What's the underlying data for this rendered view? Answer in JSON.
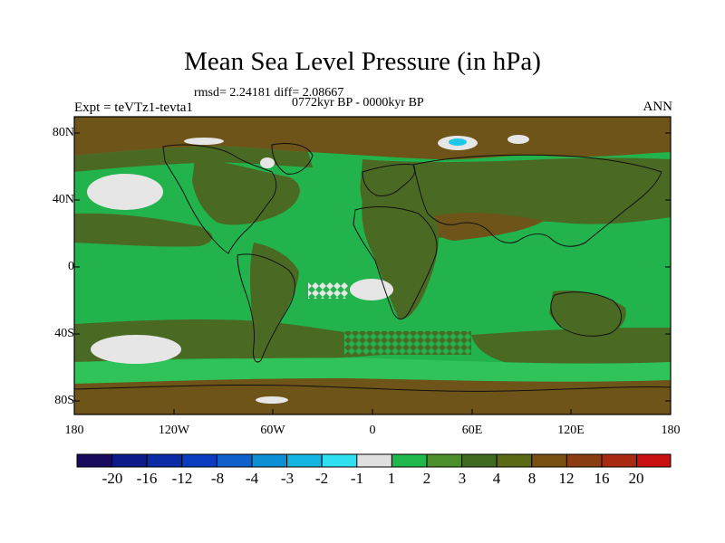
{
  "title": "Mean Sea Level Pressure (in hPa)",
  "stats_line": "rmsd= 2.24181 diff= 2.08667",
  "period_line": "0772kyr BP - 0000kyr BP",
  "experiment_label": "Expt = teVTz1-tevta1",
  "season_label": "ANN",
  "axes": {
    "y_ticks": [
      "80N",
      "40N",
      "0",
      "40S",
      "80S"
    ],
    "x_ticks": [
      "180",
      "120W",
      "60W",
      "0",
      "60E",
      "120E",
      "180"
    ]
  },
  "colorbar": {
    "labels": [
      "-20",
      "-16",
      "-12",
      "-8",
      "-4",
      "-3",
      "-2",
      "-1",
      "1",
      "2",
      "3",
      "4",
      "8",
      "12",
      "16",
      "20"
    ],
    "colors": [
      "#1a0a5e",
      "#0d1a8a",
      "#0a2aa6",
      "#0a3dbf",
      "#1060cc",
      "#0a8fd4",
      "#14b4e0",
      "#30e0f0",
      "#e0e0e0",
      "#1fb84a",
      "#4a8f2a",
      "#3f6a1f",
      "#5a6a14",
      "#7a5012",
      "#8a3d10",
      "#a82a10",
      "#c81010"
    ]
  },
  "map_colors": {
    "brown": "#6e5418",
    "olive": "#4a6a24",
    "green": "#22b34c",
    "light_green": "#2fc35a",
    "white": "#e6e6e6",
    "cyan": "#1ec8e6",
    "coast": "#111111"
  }
}
